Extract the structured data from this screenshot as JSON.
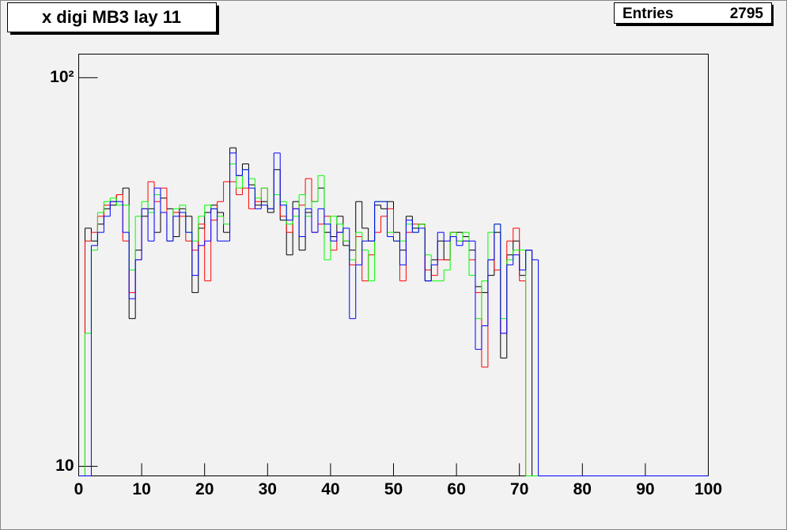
{
  "chart_data": {
    "type": "histogram",
    "title": "x digi MB3 lay 11",
    "stats": {
      "label": "Entries",
      "value": 2795
    },
    "bins": [
      0,
      1,
      2,
      3,
      4,
      5,
      6,
      7,
      8,
      9,
      10,
      11,
      12,
      13,
      14,
      15,
      16,
      17,
      18,
      19,
      20,
      21,
      22,
      23,
      24,
      25,
      26,
      27,
      28,
      29,
      30,
      31,
      32,
      33,
      34,
      35,
      36,
      37,
      38,
      39,
      40,
      41,
      42,
      43,
      44,
      45,
      46,
      47,
      48,
      49,
      50,
      51,
      52,
      53,
      54,
      55,
      56,
      57,
      58,
      59,
      60,
      61,
      62,
      63,
      64,
      65,
      66,
      67,
      68,
      69,
      70,
      71,
      72,
      73,
      74,
      75,
      76,
      77,
      78,
      79,
      80,
      81,
      82,
      83,
      84,
      85,
      86,
      87,
      88,
      89,
      90,
      91,
      92,
      93,
      94,
      95,
      96,
      97,
      98,
      99,
      100
    ],
    "series": [
      {
        "color": "#000000",
        "values": [
          0,
          41,
          38,
          42,
          46,
          47,
          50,
          52,
          24,
          36,
          44,
          46,
          40,
          49,
          46,
          39,
          46,
          44,
          28,
          41,
          45,
          47,
          45,
          40,
          66,
          56,
          60,
          53,
          47,
          48,
          45,
          58,
          43,
          35,
          48,
          36,
          45,
          48,
          52,
          40,
          39,
          44,
          37,
          36,
          48,
          41,
          38,
          47,
          46,
          48,
          40,
          36,
          44,
          41,
          42,
          30,
          34,
          38,
          34,
          40,
          40,
          39,
          36,
          29,
          28,
          31,
          40,
          19,
          35,
          38,
          31,
          36,
          0,
          0,
          0,
          0,
          0,
          0,
          0,
          0,
          0,
          0,
          0,
          0,
          0,
          0,
          0,
          0,
          0,
          0,
          0,
          0,
          0,
          0,
          0,
          0,
          0,
          0,
          0,
          0
        ]
      },
      {
        "color": "#ff0000",
        "values": [
          0,
          38,
          40,
          44,
          47,
          48,
          50,
          38,
          28,
          34,
          46,
          54,
          48,
          52,
          38,
          45,
          44,
          38,
          36,
          42,
          30,
          43,
          48,
          54,
          54,
          50,
          52,
          46,
          48,
          52,
          46,
          50,
          44,
          40,
          46,
          47,
          55,
          40,
          42,
          44,
          36,
          40,
          38,
          33,
          39,
          30,
          35,
          40,
          44,
          46,
          38,
          30,
          40,
          42,
          42,
          32,
          31,
          34,
          34,
          40,
          38,
          38,
          34,
          28,
          18,
          34,
          32,
          22,
          38,
          41,
          30,
          0,
          0,
          0,
          0,
          0,
          0,
          0,
          0,
          0,
          0,
          0,
          0,
          0,
          0,
          0,
          0,
          0,
          0,
          0,
          0,
          0,
          0,
          0,
          0,
          0,
          0,
          0,
          0,
          0
        ]
      },
      {
        "color": "#00ff00",
        "values": [
          0,
          22,
          36,
          45,
          48,
          49,
          47,
          47,
          32,
          44,
          48,
          45,
          50,
          45,
          38,
          46,
          47,
          40,
          38,
          44,
          47,
          46,
          44,
          42,
          60,
          52,
          58,
          55,
          49,
          52,
          46,
          50,
          48,
          42,
          44,
          50,
          44,
          48,
          56,
          34,
          44,
          42,
          38,
          34,
          40,
          36,
          30,
          48,
          48,
          40,
          38,
          38,
          42,
          40,
          42,
          35,
          30,
          30,
          32,
          40,
          38,
          40,
          31,
          24,
          30,
          40,
          42,
          24,
          34,
          36,
          36,
          0,
          0,
          0,
          0,
          0,
          0,
          0,
          0,
          0,
          0,
          0,
          0,
          0,
          0,
          0,
          0,
          0,
          0,
          0,
          0,
          0,
          0,
          0,
          0,
          0,
          0,
          0,
          0,
          0
        ]
      },
      {
        "color": "#0000ff",
        "values": [
          0,
          0,
          37,
          40,
          44,
          48,
          48,
          40,
          27,
          34,
          46,
          38,
          52,
          45,
          38,
          44,
          45,
          40,
          31,
          37,
          38,
          46,
          38,
          38,
          64,
          56,
          58,
          52,
          46,
          47,
          46,
          64,
          47,
          43,
          46,
          39,
          46,
          40,
          46,
          42,
          38,
          40,
          41,
          24,
          33,
          38,
          38,
          48,
          48,
          39,
          38,
          33,
          43,
          40,
          41,
          30,
          33,
          40,
          38,
          39,
          37,
          38,
          38,
          20,
          23,
          34,
          42,
          22,
          33,
          35,
          32,
          36,
          34,
          0,
          0,
          0,
          0,
          0,
          0,
          0,
          0,
          0,
          0,
          0,
          0,
          0,
          0,
          0,
          0,
          0,
          0,
          0,
          0,
          0,
          0,
          0,
          0,
          0,
          0,
          0
        ]
      }
    ],
    "xlim": [
      0,
      100
    ],
    "xticks": [
      0,
      10,
      20,
      30,
      40,
      50,
      60,
      70,
      80,
      90,
      100
    ],
    "ylim": [
      9.45,
      115
    ],
    "log_y": true,
    "yticks": [
      10,
      {
        "value": 100,
        "label": "10²"
      }
    ]
  }
}
